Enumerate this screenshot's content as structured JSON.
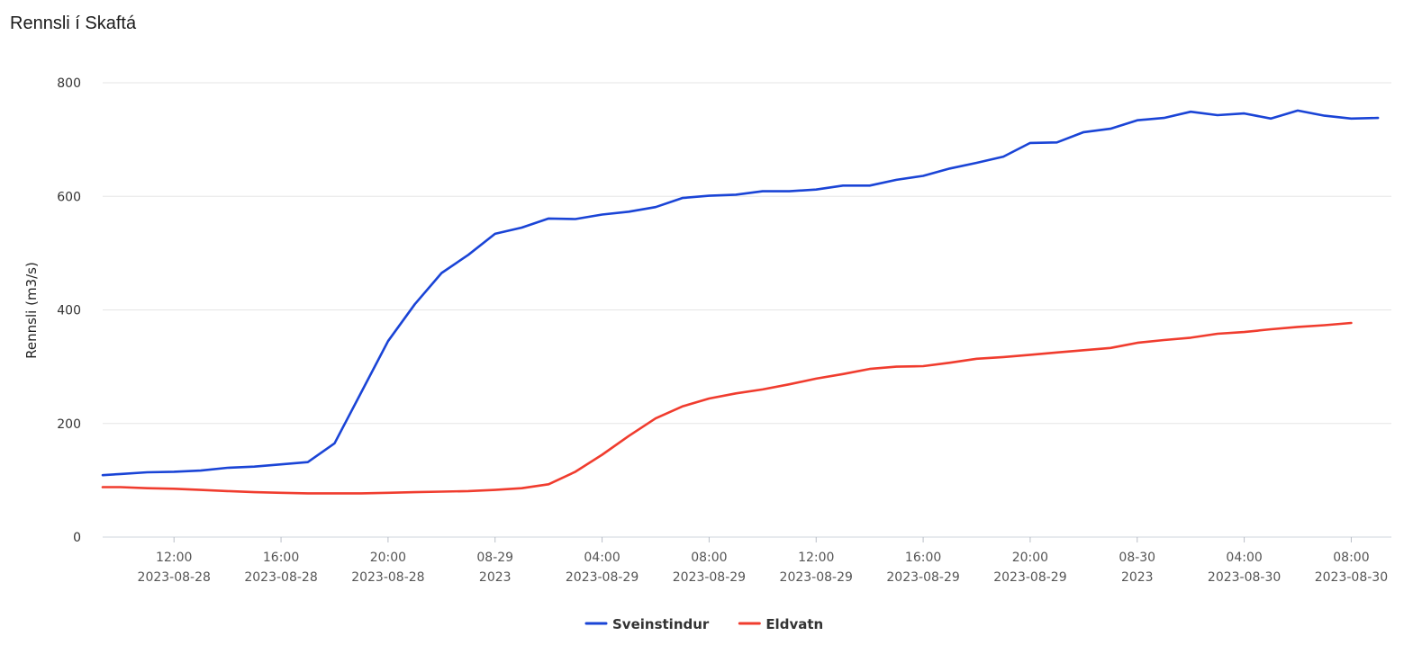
{
  "chart_data": {
    "type": "line",
    "title": "Rennsli í Skaftá",
    "ylabel": "Rennsli (m3/s)",
    "xlabel": "",
    "ylim": [
      0,
      800
    ],
    "y_ticks": [
      "0",
      "200",
      "400",
      "600",
      "800"
    ],
    "grid": true,
    "legend_position": "bottom-center",
    "x_range": [
      "2023-08-28 09:20",
      "2023-08-30 09:30"
    ],
    "x_ticks": [
      {
        "time": "2023-08-28 12:00",
        "line1": "12:00",
        "line2": "2023-08-28"
      },
      {
        "time": "2023-08-28 16:00",
        "line1": "16:00",
        "line2": "2023-08-28"
      },
      {
        "time": "2023-08-28 20:00",
        "line1": "20:00",
        "line2": "2023-08-28"
      },
      {
        "time": "2023-08-29 00:00",
        "line1": "08-29",
        "line2": "2023"
      },
      {
        "time": "2023-08-29 04:00",
        "line1": "04:00",
        "line2": "2023-08-29"
      },
      {
        "time": "2023-08-29 08:00",
        "line1": "08:00",
        "line2": "2023-08-29"
      },
      {
        "time": "2023-08-29 12:00",
        "line1": "12:00",
        "line2": "2023-08-29"
      },
      {
        "time": "2023-08-29 16:00",
        "line1": "16:00",
        "line2": "2023-08-29"
      },
      {
        "time": "2023-08-29 20:00",
        "line1": "20:00",
        "line2": "2023-08-29"
      },
      {
        "time": "2023-08-30 00:00",
        "line1": "08-30",
        "line2": "2023"
      },
      {
        "time": "2023-08-30 04:00",
        "line1": "04:00",
        "line2": "2023-08-30"
      },
      {
        "time": "2023-08-30 08:00",
        "line1": "08:00",
        "line2": "2023-08-30"
      }
    ],
    "series": [
      {
        "name": "Sveinstindur",
        "color": "#1a44d6",
        "points": [
          [
            "2023-08-28 09:20",
            109
          ],
          [
            "2023-08-28 10:00",
            111
          ],
          [
            "2023-08-28 11:00",
            114
          ],
          [
            "2023-08-28 12:00",
            115
          ],
          [
            "2023-08-28 13:00",
            117
          ],
          [
            "2023-08-28 14:00",
            122
          ],
          [
            "2023-08-28 15:00",
            124
          ],
          [
            "2023-08-28 16:00",
            128
          ],
          [
            "2023-08-28 17:00",
            132
          ],
          [
            "2023-08-28 18:00",
            165
          ],
          [
            "2023-08-28 19:00",
            255
          ],
          [
            "2023-08-28 20:00",
            345
          ],
          [
            "2023-08-28 21:00",
            410
          ],
          [
            "2023-08-28 22:00",
            465
          ],
          [
            "2023-08-28 23:00",
            497
          ],
          [
            "2023-08-29 00:00",
            534
          ],
          [
            "2023-08-29 01:00",
            545
          ],
          [
            "2023-08-29 02:00",
            561
          ],
          [
            "2023-08-29 03:00",
            560
          ],
          [
            "2023-08-29 04:00",
            568
          ],
          [
            "2023-08-29 05:00",
            573
          ],
          [
            "2023-08-29 06:00",
            581
          ],
          [
            "2023-08-29 07:00",
            597
          ],
          [
            "2023-08-29 08:00",
            601
          ],
          [
            "2023-08-29 09:00",
            603
          ],
          [
            "2023-08-29 10:00",
            609
          ],
          [
            "2023-08-29 11:00",
            609
          ],
          [
            "2023-08-29 12:00",
            612
          ],
          [
            "2023-08-29 13:00",
            619
          ],
          [
            "2023-08-29 14:00",
            619
          ],
          [
            "2023-08-29 15:00",
            629
          ],
          [
            "2023-08-29 16:00",
            636
          ],
          [
            "2023-08-29 17:00",
            649
          ],
          [
            "2023-08-29 18:00",
            659
          ],
          [
            "2023-08-29 19:00",
            670
          ],
          [
            "2023-08-29 20:00",
            694
          ],
          [
            "2023-08-29 21:00",
            695
          ],
          [
            "2023-08-29 22:00",
            713
          ],
          [
            "2023-08-29 23:00",
            719
          ],
          [
            "2023-08-30 00:00",
            734
          ],
          [
            "2023-08-30 01:00",
            738
          ],
          [
            "2023-08-30 02:00",
            749
          ],
          [
            "2023-08-30 03:00",
            743
          ],
          [
            "2023-08-30 04:00",
            746
          ],
          [
            "2023-08-30 05:00",
            737
          ],
          [
            "2023-08-30 06:00",
            751
          ],
          [
            "2023-08-30 07:00",
            742
          ],
          [
            "2023-08-30 08:00",
            737
          ],
          [
            "2023-08-30 09:00",
            738
          ]
        ]
      },
      {
        "name": "Eldvatn",
        "color": "#f03c2e",
        "points": [
          [
            "2023-08-28 09:20",
            88
          ],
          [
            "2023-08-28 10:00",
            88
          ],
          [
            "2023-08-28 11:00",
            86
          ],
          [
            "2023-08-28 12:00",
            85
          ],
          [
            "2023-08-28 13:00",
            83
          ],
          [
            "2023-08-28 14:00",
            81
          ],
          [
            "2023-08-28 15:00",
            79
          ],
          [
            "2023-08-28 16:00",
            78
          ],
          [
            "2023-08-28 17:00",
            77
          ],
          [
            "2023-08-28 18:00",
            77
          ],
          [
            "2023-08-28 19:00",
            77
          ],
          [
            "2023-08-28 20:00",
            78
          ],
          [
            "2023-08-28 21:00",
            79
          ],
          [
            "2023-08-28 22:00",
            80
          ],
          [
            "2023-08-28 23:00",
            81
          ],
          [
            "2023-08-29 00:00",
            83
          ],
          [
            "2023-08-29 01:00",
            86
          ],
          [
            "2023-08-29 02:00",
            93
          ],
          [
            "2023-08-29 03:00",
            115
          ],
          [
            "2023-08-29 04:00",
            145
          ],
          [
            "2023-08-29 05:00",
            178
          ],
          [
            "2023-08-29 06:00",
            209
          ],
          [
            "2023-08-29 07:00",
            230
          ],
          [
            "2023-08-29 08:00",
            244
          ],
          [
            "2023-08-29 09:00",
            253
          ],
          [
            "2023-08-29 10:00",
            260
          ],
          [
            "2023-08-29 11:00",
            269
          ],
          [
            "2023-08-29 12:00",
            279
          ],
          [
            "2023-08-29 13:00",
            287
          ],
          [
            "2023-08-29 14:00",
            296
          ],
          [
            "2023-08-29 15:00",
            300
          ],
          [
            "2023-08-29 16:00",
            301
          ],
          [
            "2023-08-29 17:00",
            307
          ],
          [
            "2023-08-29 18:00",
            314
          ],
          [
            "2023-08-29 19:00",
            317
          ],
          [
            "2023-08-29 20:00",
            321
          ],
          [
            "2023-08-29 21:00",
            325
          ],
          [
            "2023-08-29 22:00",
            329
          ],
          [
            "2023-08-29 23:00",
            333
          ],
          [
            "2023-08-30 00:00",
            342
          ],
          [
            "2023-08-30 01:00",
            347
          ],
          [
            "2023-08-30 02:00",
            351
          ],
          [
            "2023-08-30 03:00",
            358
          ],
          [
            "2023-08-30 04:00",
            361
          ],
          [
            "2023-08-30 05:00",
            366
          ],
          [
            "2023-08-30 06:00",
            370
          ],
          [
            "2023-08-30 07:00",
            373
          ],
          [
            "2023-08-30 08:00",
            377
          ]
        ]
      }
    ]
  }
}
